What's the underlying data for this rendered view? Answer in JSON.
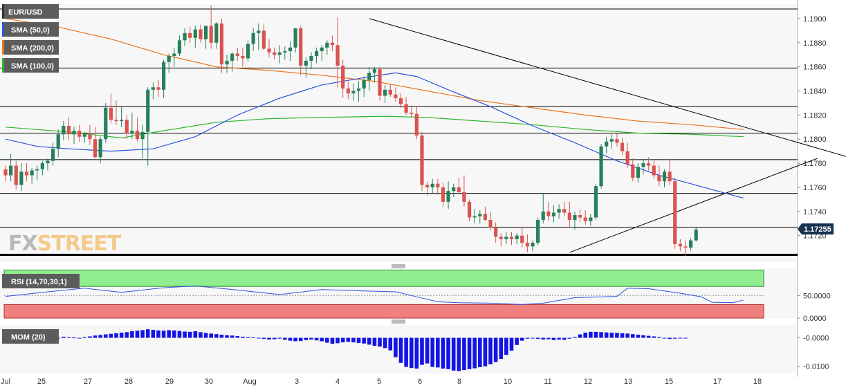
{
  "chart_data": {
    "type": "candlestick",
    "symbol": "EUR/USD",
    "watermark": {
      "part1": "FX",
      "part2": "STREET"
    },
    "colors": {
      "up": "#26805a",
      "down": "#d9534f",
      "sma50": "#2a52e0",
      "sma200": "#e87722",
      "sma100": "#2ab52a",
      "trend": "#000000",
      "rsi": "#2a52e0",
      "mom": "#1414e6",
      "overbought": "#90ee90",
      "oversold": "#f08080"
    },
    "legend": [
      {
        "label": "EUR/USD",
        "color": "#333333"
      },
      {
        "label": "SMA (50,0)",
        "color": "#2a52e0"
      },
      {
        "label": "SMA (200,0)",
        "color": "#e87722"
      },
      {
        "label": "SMA (100,0)",
        "color": "#2ab52a"
      }
    ],
    "last_price": "1.17255",
    "price_axis": {
      "ylim": [
        1.1698,
        1.1912
      ],
      "ticks": [
        "1.1900",
        "1.1880",
        "1.1860",
        "1.1840",
        "1.1820",
        "1.1800",
        "1.1780",
        "1.1760",
        "1.1740",
        "1.1720"
      ]
    },
    "x_ticks": [
      "Jul",
      "25",
      "27",
      "28",
      "29",
      "30",
      "Aug",
      "3",
      "4",
      "5",
      "6",
      "8",
      "10",
      "11",
      "12",
      "13",
      "15",
      "17",
      "18"
    ],
    "support_resistance_levels": [
      1.1908,
      1.1859,
      1.1827,
      1.1805,
      1.1783,
      1.1755,
      1.1727,
      1.1704
    ],
    "trendlines": [
      {
        "x": [
          69,
          175
        ],
        "y": [
          1.19,
          1.1766
        ]
      },
      {
        "x": [
          107,
          154
        ],
        "y": [
          1.1706,
          1.1784
        ]
      }
    ],
    "candles_ohlc": [
      [
        1.1775,
        1.1778,
        1.1765,
        1.177
      ],
      [
        1.177,
        1.1788,
        1.1765,
        1.1778
      ],
      [
        1.1778,
        1.1782,
        1.1758,
        1.1762
      ],
      [
        1.1762,
        1.178,
        1.1757,
        1.1773
      ],
      [
        1.1773,
        1.178,
        1.1765,
        1.177
      ],
      [
        1.177,
        1.1776,
        1.1763,
        1.1774
      ],
      [
        1.1774,
        1.1778,
        1.1766,
        1.1775
      ],
      [
        1.1775,
        1.1782,
        1.177,
        1.178
      ],
      [
        1.178,
        1.1784,
        1.1774,
        1.1782
      ],
      [
        1.1782,
        1.1797,
        1.1778,
        1.1792
      ],
      [
        1.1792,
        1.1808,
        1.1785,
        1.1804
      ],
      [
        1.1804,
        1.1815,
        1.1799,
        1.1811
      ],
      [
        1.1811,
        1.1818,
        1.1799,
        1.1804
      ],
      [
        1.1804,
        1.181,
        1.1796,
        1.1807
      ],
      [
        1.1807,
        1.1812,
        1.1798,
        1.1802
      ],
      [
        1.1802,
        1.1806,
        1.1797,
        1.1804
      ],
      [
        1.1804,
        1.1812,
        1.1795,
        1.18
      ],
      [
        1.18,
        1.181,
        1.1784,
        1.1785
      ],
      [
        1.1785,
        1.1802,
        1.178,
        1.18
      ],
      [
        1.18,
        1.183,
        1.1797,
        1.1826
      ],
      [
        1.1826,
        1.1838,
        1.1813,
        1.1816
      ],
      [
        1.1816,
        1.1832,
        1.1812,
        1.1815
      ],
      [
        1.1815,
        1.1827,
        1.181,
        1.1816
      ],
      [
        1.1816,
        1.182,
        1.18,
        1.1805
      ],
      [
        1.1805,
        1.1822,
        1.18,
        1.1807
      ],
      [
        1.1807,
        1.1818,
        1.1798,
        1.18
      ],
      [
        1.18,
        1.1812,
        1.1784,
        1.1806
      ],
      [
        1.1806,
        1.1843,
        1.1778,
        1.1841
      ],
      [
        1.1841,
        1.1847,
        1.1833,
        1.1843
      ],
      [
        1.1843,
        1.1849,
        1.1835,
        1.1841
      ],
      [
        1.1841,
        1.1866,
        1.1834,
        1.1864
      ],
      [
        1.1864,
        1.1871,
        1.1855,
        1.1869
      ],
      [
        1.1869,
        1.1876,
        1.186,
        1.1871
      ],
      [
        1.1871,
        1.1886,
        1.1869,
        1.1882
      ],
      [
        1.1882,
        1.1892,
        1.1877,
        1.1888
      ],
      [
        1.1888,
        1.1893,
        1.188,
        1.1884
      ],
      [
        1.1884,
        1.1894,
        1.1876,
        1.1891
      ],
      [
        1.1891,
        1.1895,
        1.188,
        1.1883
      ],
      [
        1.1883,
        1.1893,
        1.1875,
        1.1894
      ],
      [
        1.1894,
        1.1911,
        1.1875,
        1.188
      ],
      [
        1.188,
        1.1897,
        1.1875,
        1.1896
      ],
      [
        1.1896,
        1.19,
        1.1855,
        1.1862
      ],
      [
        1.1862,
        1.187,
        1.1855,
        1.1865
      ],
      [
        1.1865,
        1.1872,
        1.1856,
        1.1871
      ],
      [
        1.1871,
        1.1876,
        1.1865,
        1.1869
      ],
      [
        1.1869,
        1.1876,
        1.186,
        1.1867
      ],
      [
        1.1867,
        1.1882,
        1.1864,
        1.1879
      ],
      [
        1.1879,
        1.1892,
        1.1873,
        1.1888
      ],
      [
        1.1888,
        1.1896,
        1.1874,
        1.189
      ],
      [
        1.189,
        1.1895,
        1.1874,
        1.1875
      ],
      [
        1.1875,
        1.1883,
        1.1868,
        1.1872
      ],
      [
        1.1872,
        1.1876,
        1.1866,
        1.187
      ],
      [
        1.187,
        1.1878,
        1.1863,
        1.1872
      ],
      [
        1.1872,
        1.1877,
        1.1866,
        1.1873
      ],
      [
        1.1873,
        1.1881,
        1.1865,
        1.1876
      ],
      [
        1.1876,
        1.1892,
        1.1872,
        1.1892
      ],
      [
        1.1892,
        1.1894,
        1.1853,
        1.1861
      ],
      [
        1.1861,
        1.1868,
        1.1851,
        1.1865
      ],
      [
        1.1865,
        1.1872,
        1.1858,
        1.1869
      ],
      [
        1.1869,
        1.1876,
        1.1863,
        1.1873
      ],
      [
        1.1873,
        1.1878,
        1.1865,
        1.1876
      ],
      [
        1.1876,
        1.1882,
        1.187,
        1.188
      ],
      [
        1.188,
        1.1886,
        1.1873,
        1.1878
      ],
      [
        1.1878,
        1.1901,
        1.1843,
        1.1861
      ],
      [
        1.1861,
        1.1866,
        1.1834,
        1.1842
      ],
      [
        1.1842,
        1.1848,
        1.1833,
        1.1838
      ],
      [
        1.1838,
        1.1846,
        1.1832,
        1.184
      ],
      [
        1.184,
        1.1848,
        1.1831,
        1.1842
      ],
      [
        1.1842,
        1.1852,
        1.1835,
        1.1849
      ],
      [
        1.1849,
        1.186,
        1.184,
        1.1855
      ],
      [
        1.1855,
        1.186,
        1.1847,
        1.1858
      ],
      [
        1.1858,
        1.186,
        1.1832,
        1.1836
      ],
      [
        1.1836,
        1.1845,
        1.183,
        1.1841
      ],
      [
        1.1841,
        1.1846,
        1.1835,
        1.1837
      ],
      [
        1.1837,
        1.1843,
        1.1831,
        1.1834
      ],
      [
        1.1834,
        1.1838,
        1.1826,
        1.1829
      ],
      [
        1.1829,
        1.1835,
        1.182,
        1.1822
      ],
      [
        1.1822,
        1.1828,
        1.1818,
        1.1821
      ],
      [
        1.1821,
        1.1827,
        1.18,
        1.1803
      ],
      [
        1.1803,
        1.1806,
        1.1757,
        1.1762
      ],
      [
        1.1762,
        1.1765,
        1.1753,
        1.176
      ],
      [
        1.176,
        1.1767,
        1.1755,
        1.1763
      ],
      [
        1.1763,
        1.1767,
        1.1754,
        1.176
      ],
      [
        1.176,
        1.1764,
        1.1744,
        1.1748
      ],
      [
        1.1748,
        1.1765,
        1.1742,
        1.1757
      ],
      [
        1.1757,
        1.1763,
        1.1752,
        1.176
      ],
      [
        1.176,
        1.1768,
        1.1754,
        1.1756
      ],
      [
        1.1756,
        1.177,
        1.1744,
        1.1748
      ],
      [
        1.1748,
        1.175,
        1.1732,
        1.1735
      ],
      [
        1.1735,
        1.1742,
        1.173,
        1.1736
      ],
      [
        1.1736,
        1.1741,
        1.173,
        1.1738
      ],
      [
        1.1738,
        1.1744,
        1.1732,
        1.1733
      ],
      [
        1.1733,
        1.174,
        1.1724,
        1.1727
      ],
      [
        1.1727,
        1.1731,
        1.1714,
        1.1719
      ],
      [
        1.1719,
        1.1722,
        1.1711,
        1.1717
      ],
      [
        1.1717,
        1.1723,
        1.1713,
        1.1719
      ],
      [
        1.1719,
        1.1723,
        1.1712,
        1.1717
      ],
      [
        1.1717,
        1.1722,
        1.1713,
        1.172
      ],
      [
        1.172,
        1.1727,
        1.171,
        1.1714
      ],
      [
        1.1714,
        1.1721,
        1.1706,
        1.1711
      ],
      [
        1.1711,
        1.1716,
        1.1707,
        1.1714
      ],
      [
        1.1714,
        1.1735,
        1.1712,
        1.1733
      ],
      [
        1.1733,
        1.1755,
        1.173,
        1.174
      ],
      [
        1.174,
        1.1748,
        1.1732,
        1.1736
      ],
      [
        1.1736,
        1.1745,
        1.1731,
        1.1739
      ],
      [
        1.1739,
        1.1746,
        1.1734,
        1.1742
      ],
      [
        1.1742,
        1.1748,
        1.1736,
        1.1739
      ],
      [
        1.1739,
        1.1748,
        1.1727,
        1.1733
      ],
      [
        1.1733,
        1.174,
        1.1725,
        1.1737
      ],
      [
        1.1737,
        1.1742,
        1.1731,
        1.1735
      ],
      [
        1.1735,
        1.1741,
        1.1729,
        1.1732
      ],
      [
        1.1732,
        1.1738,
        1.1728,
        1.1735
      ],
      [
        1.1735,
        1.1763,
        1.1733,
        1.1761
      ],
      [
        1.1761,
        1.1796,
        1.1759,
        1.1794
      ],
      [
        1.1794,
        1.1802,
        1.1788,
        1.1798
      ],
      [
        1.1798,
        1.1804,
        1.1792,
        1.18
      ],
      [
        1.18,
        1.1805,
        1.1794,
        1.1797
      ],
      [
        1.1797,
        1.1801,
        1.1787,
        1.179
      ],
      [
        1.179,
        1.1797,
        1.1776,
        1.1779
      ],
      [
        1.1779,
        1.1784,
        1.1765,
        1.1768
      ],
      [
        1.1768,
        1.178,
        1.1764,
        1.1777
      ],
      [
        1.1777,
        1.1783,
        1.1771,
        1.178
      ],
      [
        1.178,
        1.1785,
        1.1774,
        1.1778
      ],
      [
        1.1778,
        1.1782,
        1.1767,
        1.177
      ],
      [
        1.177,
        1.1778,
        1.1761,
        1.1765
      ],
      [
        1.1765,
        1.1775,
        1.176,
        1.1773
      ],
      [
        1.1773,
        1.1784,
        1.1762,
        1.1765
      ],
      [
        1.1765,
        1.1768,
        1.1709,
        1.1713
      ],
      [
        1.1713,
        1.1717,
        1.1707,
        1.1711
      ],
      [
        1.1711,
        1.1716,
        1.1703,
        1.171
      ],
      [
        1.171,
        1.1718,
        1.1707,
        1.1716
      ],
      [
        1.1716,
        1.1727,
        1.1715,
        1.1725
      ]
    ],
    "sma50": [
      [
        0,
        1.18
      ],
      [
        6,
        1.1794
      ],
      [
        12,
        1.1792
      ],
      [
        20,
        1.179
      ],
      [
        28,
        1.1792
      ],
      [
        36,
        1.1802
      ],
      [
        44,
        1.182
      ],
      [
        52,
        1.1834
      ],
      [
        60,
        1.1845
      ],
      [
        68,
        1.1851
      ],
      [
        74,
        1.1855
      ],
      [
        78,
        1.1852
      ],
      [
        84,
        1.1841
      ],
      [
        92,
        1.1827
      ],
      [
        100,
        1.1811
      ],
      [
        108,
        1.1797
      ],
      [
        116,
        1.1782
      ],
      [
        124,
        1.177
      ],
      [
        130,
        1.1763
      ],
      [
        140,
        1.1751
      ]
    ],
    "sma200": [
      [
        0,
        1.19
      ],
      [
        10,
        1.1893
      ],
      [
        20,
        1.1883
      ],
      [
        30,
        1.187
      ],
      [
        40,
        1.186
      ],
      [
        50,
        1.1857
      ],
      [
        60,
        1.1853
      ],
      [
        70,
        1.1848
      ],
      [
        80,
        1.184
      ],
      [
        90,
        1.1832
      ],
      [
        100,
        1.1826
      ],
      [
        110,
        1.182
      ],
      [
        120,
        1.1815
      ],
      [
        130,
        1.1812
      ],
      [
        140,
        1.1808
      ]
    ],
    "sma100": [
      [
        0,
        1.181
      ],
      [
        12,
        1.1806
      ],
      [
        22,
        1.1801
      ],
      [
        30,
        1.1807
      ],
      [
        40,
        1.1814
      ],
      [
        50,
        1.1817
      ],
      [
        60,
        1.1818
      ],
      [
        72,
        1.1819
      ],
      [
        80,
        1.1818
      ],
      [
        90,
        1.1815
      ],
      [
        100,
        1.1812
      ],
      [
        110,
        1.1808
      ],
      [
        120,
        1.1805
      ],
      [
        130,
        1.1804
      ],
      [
        140,
        1.1802
      ]
    ],
    "rsi": {
      "label": "RSI (14,70,30,1)",
      "ylim": [
        0,
        110
      ],
      "ticks": [
        "50.0000",
        "0.0000"
      ],
      "overbought": 70,
      "oversold": 30,
      "values": [
        [
          0,
          48
        ],
        [
          8,
          58
        ],
        [
          15,
          66
        ],
        [
          22,
          57
        ],
        [
          30,
          67
        ],
        [
          36,
          71
        ],
        [
          44,
          62
        ],
        [
          52,
          52
        ],
        [
          60,
          63
        ],
        [
          68,
          60
        ],
        [
          74,
          58
        ],
        [
          78,
          47
        ],
        [
          82,
          36
        ],
        [
          86,
          34
        ],
        [
          92,
          33
        ],
        [
          98,
          30
        ],
        [
          102,
          33
        ],
        [
          108,
          45
        ],
        [
          116,
          48
        ],
        [
          118,
          66
        ],
        [
          122,
          65
        ],
        [
          128,
          55
        ],
        [
          132,
          47
        ],
        [
          134,
          35
        ],
        [
          138,
          34
        ],
        [
          140,
          40
        ]
      ]
    },
    "mom": {
      "label": "MOM (20)",
      "ylim": [
        -0.0125,
        0.0045
      ],
      "ticks": [
        "-0.0000",
        "-0.0100"
      ],
      "values": [
        -0.001,
        -0.0012,
        -0.0009,
        -0.001,
        -0.0008,
        -0.0006,
        -0.0004,
        -0.0003,
        -0.0005,
        -0.0003,
        -0.0001,
        0.0004,
        0.0002,
        0.0001,
        0.0,
        0.0003,
        0.0005,
        0.0008,
        0.001,
        0.0012,
        0.0014,
        0.0016,
        0.0018,
        0.002,
        0.0023,
        0.0025,
        0.0027,
        0.003,
        0.0028,
        0.0026,
        0.0025,
        0.0027,
        0.0026,
        0.0024,
        0.0022,
        0.0021,
        0.0023,
        0.002,
        0.0017,
        0.0015,
        0.0013,
        0.0011,
        0.0009,
        0.0008,
        0.0006,
        0.0004,
        0.0003,
        0.0002,
        -0.0001,
        -0.0004,
        -0.0006,
        -0.0005,
        -0.0003,
        -0.0007,
        -0.001,
        -0.0012,
        -0.0011,
        -0.0008,
        -0.0006,
        -0.0009,
        -0.0012,
        -0.0017,
        -0.0021,
        -0.0019,
        -0.0016,
        -0.0014,
        -0.0016,
        -0.0018,
        -0.002,
        -0.0024,
        -0.0028,
        -0.0031,
        -0.0036,
        -0.0044,
        -0.0068,
        -0.0088,
        -0.0102,
        -0.0106,
        -0.0108,
        -0.0095,
        -0.009,
        -0.0102,
        -0.0104,
        -0.0108,
        -0.011,
        -0.0115,
        -0.0117,
        -0.0113,
        -0.011,
        -0.0107,
        -0.0103,
        -0.01,
        -0.0093,
        -0.0085,
        -0.0074,
        -0.006,
        -0.0045,
        -0.0025,
        -0.001,
        -0.0003,
        -0.0002,
        -0.0004,
        -0.0006,
        -0.0005,
        -0.0008,
        -0.0006,
        -0.0007,
        -0.0003,
        0.0003,
        0.0012,
        0.0018,
        0.0021,
        0.0021,
        0.002,
        0.0019,
        0.0018,
        0.0017,
        0.0016,
        0.0015,
        0.0013,
        0.0011,
        0.0009,
        0.0007,
        0.0005,
        0.0003,
        -0.0002,
        -0.0004,
        -0.0003,
        -0.0002,
        -0.0001
      ]
    }
  }
}
